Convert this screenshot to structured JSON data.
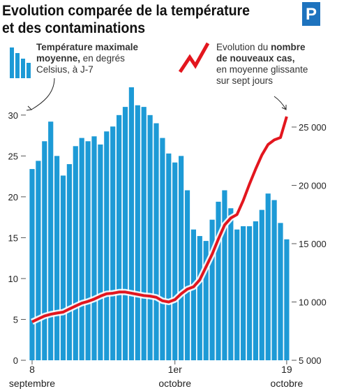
{
  "chart_data": {
    "type": "bar_line",
    "title_lines": [
      "Evolution comparée de la température",
      "et des contaminations"
    ],
    "logo": "P",
    "categories": [
      "8",
      null,
      null,
      null,
      null,
      null,
      null,
      null,
      null,
      null,
      null,
      null,
      null,
      null,
      null,
      null,
      null,
      null,
      null,
      null,
      null,
      null,
      null,
      "1er",
      null,
      null,
      null,
      null,
      null,
      null,
      null,
      null,
      null,
      null,
      null,
      null,
      null,
      null,
      null,
      null,
      null,
      "19"
    ],
    "category_sublabels": [
      "septembre",
      null,
      null,
      null,
      null,
      null,
      null,
      null,
      null,
      null,
      null,
      null,
      null,
      null,
      null,
      null,
      null,
      null,
      null,
      null,
      null,
      null,
      null,
      "octobre",
      null,
      null,
      null,
      null,
      null,
      null,
      null,
      null,
      null,
      null,
      null,
      null,
      null,
      null,
      null,
      null,
      null,
      "octobre"
    ],
    "series": [
      {
        "type": "bar",
        "color": "#1d9ad6",
        "legend_lines": [
          [
            {
              "text": "Température maximale",
              "bold": true
            }
          ],
          [
            {
              "text": "moyenne,",
              "bold": true
            },
            {
              "text": " en degrés"
            }
          ],
          [
            {
              "text": "Celsius, à J-7"
            }
          ]
        ],
        "values": [
          23.4,
          24.4,
          26.8,
          29.2,
          25.0,
          22.6,
          24.0,
          26.2,
          27.2,
          26.8,
          27.4,
          26.4,
          28.0,
          28.6,
          30.0,
          31.0,
          33.4,
          31.2,
          31.0,
          30.0,
          29.0,
          27.2,
          25.3,
          24.2,
          25.0,
          20.8,
          16.0,
          15.2,
          14.6,
          17.2,
          19.4,
          20.8,
          18.6,
          16.0,
          16.4,
          16.4,
          17.0,
          18.4,
          20.4,
          19.6,
          16.8,
          14.8
        ]
      },
      {
        "type": "line",
        "axis": "y2",
        "color": "#e3161e",
        "legend_lines": [
          [
            {
              "text": "Evolution du "
            },
            {
              "text": "nombre",
              "bold": true
            }
          ],
          [
            {
              "text": "de nouveaux cas,",
              "bold": true
            }
          ],
          [
            {
              "text": "en moyenne glissante"
            }
          ],
          [
            {
              "text": "sur sept jours"
            }
          ]
        ],
        "values": [
          8300,
          8550,
          8800,
          8950,
          9050,
          9130,
          9400,
          9650,
          9900,
          10050,
          10250,
          10500,
          10700,
          10750,
          10850,
          10850,
          10750,
          10650,
          10550,
          10500,
          10400,
          10100,
          10000,
          10200,
          10700,
          11100,
          11300,
          11900,
          13000,
          14100,
          15400,
          16600,
          17200,
          17500,
          18700,
          20100,
          21400,
          22600,
          23500,
          23900,
          24100,
          25900
        ]
      }
    ],
    "ylim": [
      0,
      34
    ],
    "yticks": [
      0,
      5,
      10,
      15,
      20,
      25,
      30
    ],
    "y2lim": [
      5000,
      28830
    ],
    "y2ticks": [
      {
        "value": 5000,
        "label": "5 000"
      },
      {
        "value": 10000,
        "label": "10 000"
      },
      {
        "value": 15000,
        "label": "15 000"
      },
      {
        "value": 20000,
        "label": "20 000"
      },
      {
        "value": 25000,
        "label": "25 000"
      }
    ]
  }
}
